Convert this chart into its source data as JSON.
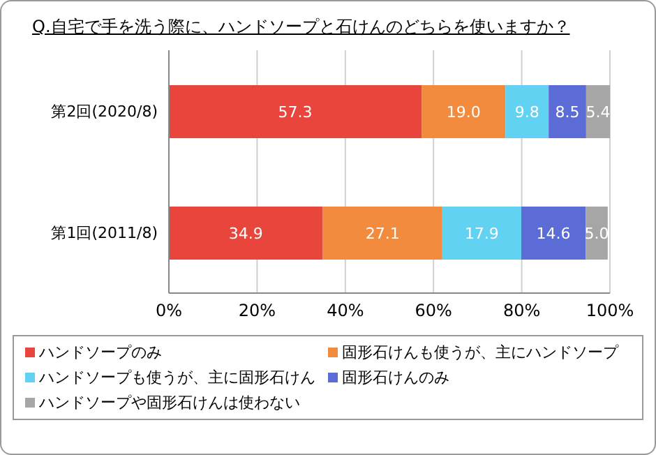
{
  "chart_data": {
    "type": "bar",
    "orientation": "horizontal",
    "stacked": true,
    "title": "Q.自宅で手を洗う際に、ハンドソープと石けんのどちらを使いますか？",
    "categories": [
      "第2回(2020/8)",
      "第1回(2011/8)"
    ],
    "series": [
      {
        "name": "ハンドソープのみ",
        "color": "#e8453c",
        "values": [
          57.3,
          34.9
        ],
        "value_labels": [
          "57.3",
          "34.9"
        ]
      },
      {
        "name": "固形石けんも使うが、主にハンドソープ",
        "color": "#f28b3e",
        "values": [
          19.0,
          27.1
        ],
        "value_labels": [
          "19.0",
          "27.1"
        ]
      },
      {
        "name": "ハンドソープも使うが、主に固形石けん",
        "color": "#62d2f2",
        "values": [
          9.8,
          17.9
        ],
        "value_labels": [
          "9.8",
          "17.9"
        ]
      },
      {
        "name": "固形石けんのみ",
        "color": "#5b6cd6",
        "values": [
          8.5,
          14.6
        ],
        "value_labels": [
          "8.5",
          "14.6"
        ]
      },
      {
        "name": "ハンドソープや固形石けんは使わない",
        "color": "#a6a6a6",
        "values": [
          5.4,
          5.0
        ],
        "value_labels": [
          "5.4",
          "5.0"
        ]
      }
    ],
    "xlim": [
      0,
      100
    ],
    "xticks": [
      {
        "value": 0,
        "label": "0%"
      },
      {
        "value": 20,
        "label": "20%"
      },
      {
        "value": 40,
        "label": "40%"
      },
      {
        "value": 60,
        "label": "60%"
      },
      {
        "value": 80,
        "label": "80%"
      },
      {
        "value": 100,
        "label": "100%"
      }
    ],
    "grid": "x",
    "legend": "bottom"
  }
}
